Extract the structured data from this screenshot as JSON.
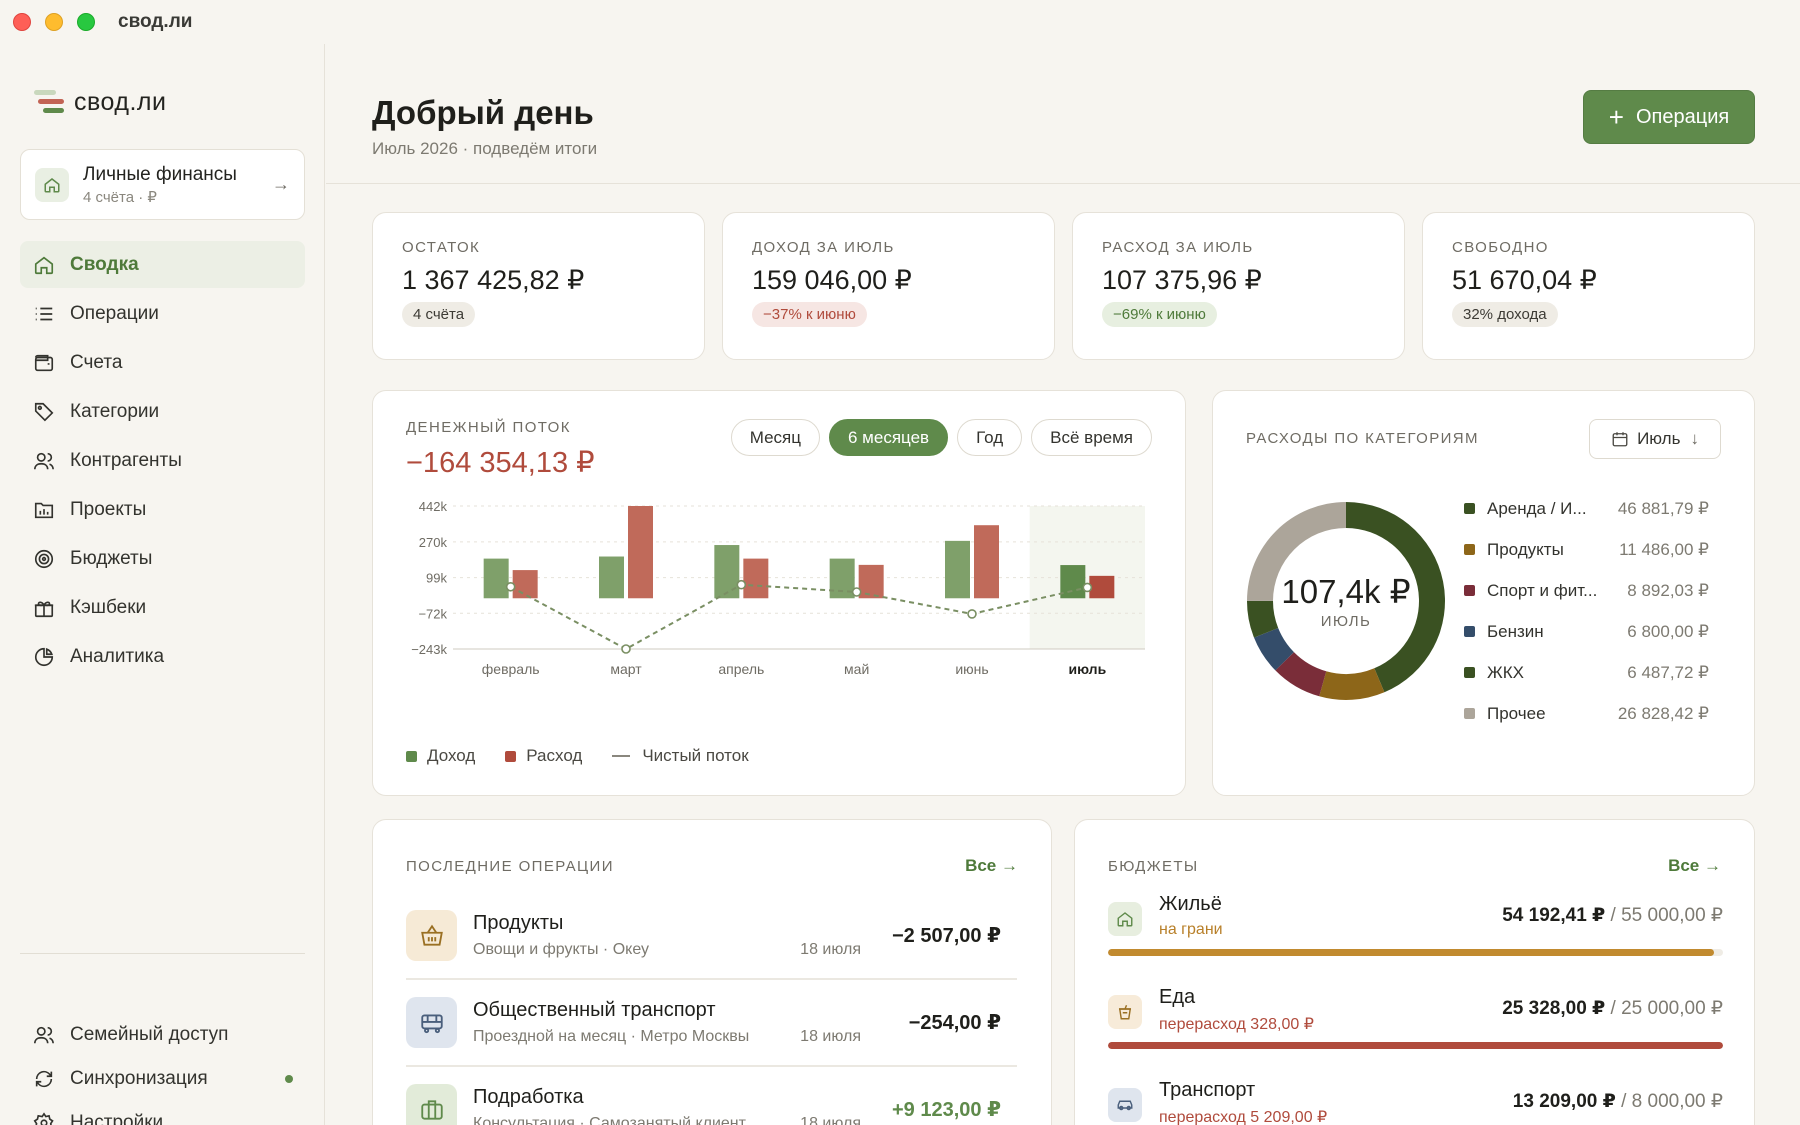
{
  "window": {
    "title": "свод.ли"
  },
  "sidebar": {
    "logo": "свод.ли",
    "space": {
      "name": "Личные финансы",
      "sub": "4 счёта · ₽"
    },
    "items": [
      {
        "label": "Сводка",
        "icon": "home-icon",
        "active": true
      },
      {
        "label": "Операции",
        "icon": "list-icon"
      },
      {
        "label": "Счета",
        "icon": "wallet-icon"
      },
      {
        "label": "Категории",
        "icon": "tag-icon"
      },
      {
        "label": "Контрагенты",
        "icon": "users-icon"
      },
      {
        "label": "Проекты",
        "icon": "chart-folder-icon"
      },
      {
        "label": "Бюджеты",
        "icon": "target-icon"
      },
      {
        "label": "Кэшбеки",
        "icon": "gift-icon"
      },
      {
        "label": "Аналитика",
        "icon": "pie-icon"
      }
    ],
    "bottom": [
      {
        "label": "Семейный доступ",
        "icon": "users-icon"
      },
      {
        "label": "Синхронизация",
        "icon": "sync-icon"
      },
      {
        "label": "Настройки",
        "icon": "gear-icon"
      }
    ]
  },
  "header": {
    "title": "Добрый день",
    "subtitle": "Июль 2026 · подведём итоги",
    "add_button": "Операция"
  },
  "kpis": [
    {
      "label": "ОСТАТОК",
      "value": "1 367 425,82 ₽",
      "badge": "4 счёта",
      "tone": "neutral"
    },
    {
      "label": "ДОХОД ЗА ИЮЛЬ",
      "value": "159 046,00 ₽",
      "badge": "−37% к июню",
      "tone": "neg"
    },
    {
      "label": "РАСХОД ЗА ИЮЛЬ",
      "value": "107 375,96 ₽",
      "badge": "−69% к июню",
      "tone": "pos"
    },
    {
      "label": "СВОБОДНО",
      "value": "51 670,04 ₽",
      "badge": "32% дохода",
      "tone": "neutral"
    }
  ],
  "cashflow": {
    "label": "ДЕНЕЖНЫЙ ПОТОК",
    "total": "−164 354,13 ₽",
    "periods": [
      "Месяц",
      "6 месяцев",
      "Год",
      "Всё время"
    ],
    "active_period": "6 месяцев",
    "legend": {
      "income": "Доход",
      "expense": "Расход",
      "net": "Чистый поток"
    }
  },
  "chart_data": {
    "type": "bar",
    "categories": [
      "февраль",
      "март",
      "апрель",
      "май",
      "июнь",
      "июль"
    ],
    "highlighted_category": "июль",
    "y_ticks": [
      "442k",
      "270k",
      "99k",
      "−72k",
      "−243k"
    ],
    "ylim": [
      -243000,
      442000
    ],
    "series": [
      {
        "name": "Доход",
        "type": "bar",
        "color": "#7fa06a",
        "values": [
          190000,
          200000,
          255000,
          190000,
          275000,
          159046
        ]
      },
      {
        "name": "Расход",
        "type": "bar",
        "color": "#c06a5a",
        "values": [
          135000,
          442000,
          190000,
          160000,
          350000,
          107376
        ]
      },
      {
        "name": "Чистый поток",
        "type": "line",
        "color": "#7a8f63",
        "values": [
          55000,
          -243000,
          65000,
          30000,
          -75000,
          51670
        ]
      }
    ],
    "grid": true,
    "legend": "bottom-left"
  },
  "categories": {
    "label": "РАСХОДЫ ПО КАТЕГОРИЯМ",
    "month": "Июль",
    "total": "107,4k ₽",
    "total_sub": "ИЮЛЬ",
    "items": [
      {
        "name": "Аренда / И...",
        "amount": "46 881,79 ₽",
        "value": 46881.79,
        "color": "#3a5122"
      },
      {
        "name": "Продукты",
        "amount": "11 486,00 ₽",
        "value": 11486.0,
        "color": "#8d6619"
      },
      {
        "name": "Спорт и фит...",
        "amount": "8 892,03 ₽",
        "value": 8892.03,
        "color": "#7a2d39"
      },
      {
        "name": "Бензин",
        "amount": "6 800,00 ₽",
        "value": 6800.0,
        "color": "#344d6a"
      },
      {
        "name": "ЖКХ",
        "amount": "6 487,72 ₽",
        "value": 6487.72,
        "color": "#3a5122"
      },
      {
        "name": "Прочее",
        "amount": "26 828,42 ₽",
        "value": 26828.42,
        "color": "#aca59a"
      }
    ]
  },
  "recent": {
    "label": "ПОСЛЕДНИЕ ОПЕРАЦИИ",
    "all": "Все →",
    "items": [
      {
        "name": "Продукты",
        "sub": "Овощи и фрукты · Океу",
        "date": "18 июля",
        "amount": "−2 507,00 ₽",
        "tone": "neg",
        "icon": "basket-icon",
        "bg": "#f6ead6",
        "fg": "#9a7023"
      },
      {
        "name": "Общественный транспорт",
        "sub": "Проездной на месяц · Метро Москвы",
        "date": "18 июля",
        "amount": "−254,00 ₽",
        "tone": "neg",
        "icon": "bus-icon",
        "bg": "#dfe5ee",
        "fg": "#4a5f7c"
      },
      {
        "name": "Подработка",
        "sub": "Консультация · Самозанятый клиент",
        "date": "18 июля",
        "amount": "+9 123,00 ₽",
        "tone": "pos",
        "icon": "briefcase-icon",
        "bg": "#e2ebd9",
        "fg": "#5f8a4b"
      }
    ]
  },
  "budgets": {
    "label": "БЮДЖЕТЫ",
    "all": "Все →",
    "items": [
      {
        "name": "Жильё",
        "status": "на грани",
        "status_color": "#b8802a",
        "spent": "54 192,41 ₽",
        "limit": "/ 55 000,00 ₽",
        "fraction": 0.985,
        "bar_color": "#c18a2f",
        "icon": "home-icon",
        "bg": "#e7eedf",
        "fg": "#5f8a4b"
      },
      {
        "name": "Еда",
        "status": "перерасход 328,00 ₽",
        "status_color": "#b04b3c",
        "spent": "25 328,00 ₽",
        "limit": "/ 25 000,00 ₽",
        "fraction": 1.0,
        "bar_color": "#b04b3c",
        "icon": "cup-icon",
        "bg": "#f7ebd9",
        "fg": "#9a7023"
      },
      {
        "name": "Транспорт",
        "status": "перерасход 5 209,00 ₽",
        "status_color": "#b04b3c",
        "spent": "13 209,00 ₽",
        "limit": "/ 8 000,00 ₽",
        "fraction": 1.0,
        "bar_color": "#b04b3c",
        "icon": "car-icon",
        "bg": "#dfe5ee",
        "fg": "#4a5f7c"
      }
    ]
  }
}
